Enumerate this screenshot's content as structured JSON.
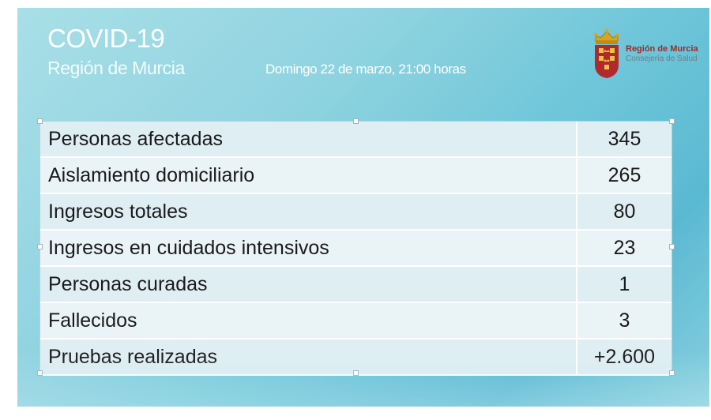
{
  "header": {
    "title": "COVID-19",
    "subtitle": "Región de Murcia",
    "dateline": "Domingo 22 de marzo, 21:00 horas"
  },
  "logo": {
    "line1": "Región de Murcia",
    "line2": "Consejería de Salud",
    "icon": "coat-of-arms-icon"
  },
  "stats": {
    "rows": [
      {
        "label": "Personas afectadas",
        "value": "345"
      },
      {
        "label": "Aislamiento domiciliario",
        "value": "265"
      },
      {
        "label": "Ingresos totales",
        "value": "80"
      },
      {
        "label": "Ingresos en cuidados intensivos",
        "value": "23"
      },
      {
        "label": "Personas curadas",
        "value": "1"
      },
      {
        "label": "Fallecidos",
        "value": "3"
      },
      {
        "label": "Pruebas realizadas",
        "value": "+2.600"
      }
    ]
  },
  "colors": {
    "background": "#6ec6d9",
    "row_odd": "#dfeef3",
    "row_even": "#eaf4f7",
    "brand_red": "#9c2b2b"
  }
}
